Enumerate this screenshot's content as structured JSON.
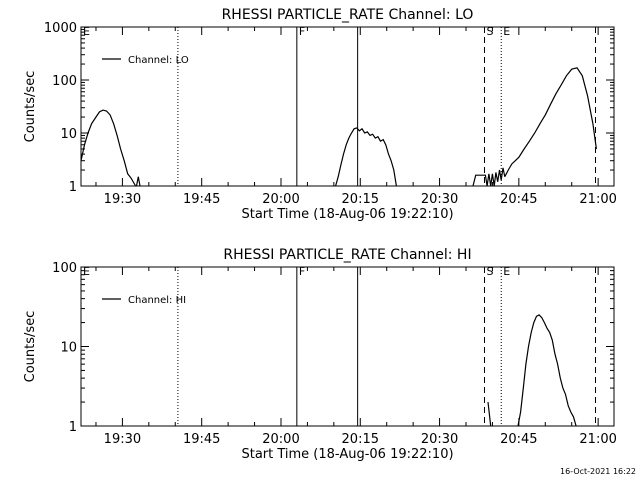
{
  "chart_data": [
    {
      "type": "line",
      "title": "RHESSI PARTICLE_RATE Channel: LO",
      "xlabel": "Start Time (18-Aug-06 19:22:10)",
      "ylabel": "Counts/sec",
      "y_scale": "log",
      "xlim": [
        "19:22:10",
        "21:03:00"
      ],
      "ylim": [
        1,
        1000
      ],
      "x_ticks": [
        "19:30",
        "19:45",
        "20:00",
        "20:15",
        "20:30",
        "20:45",
        "21:00"
      ],
      "y_ticks": [
        "1",
        "10",
        "100",
        "1000"
      ],
      "legend": {
        "entries": [
          "Channel: LO"
        ],
        "position": "top-left"
      },
      "grid": false,
      "markers": [
        {
          "label": "E",
          "time": "19:22:10",
          "style": "solid"
        },
        {
          "label": "",
          "time": "19:40:30",
          "style": "dotted"
        },
        {
          "label": "F",
          "time": "20:03:00",
          "style": "solid"
        },
        {
          "label": "",
          "time": "20:14:30",
          "style": "solid"
        },
        {
          "label": "S",
          "time": "20:38:30",
          "style": "dashed"
        },
        {
          "label": "E",
          "time": "20:41:40",
          "style": "dotted"
        },
        {
          "label": "",
          "time": "20:59:30",
          "style": "dashed"
        }
      ],
      "series": [
        {
          "name": "Channel: LO",
          "segments": [
            {
              "x": [
                "19:22:10",
                "19:22:50",
                "19:23:30",
                "19:24:10",
                "19:25:00",
                "19:25:40",
                "19:26:20",
                "19:27:00",
                "19:27:40",
                "19:28:20",
                "19:29:00",
                "19:29:40",
                "19:30:20",
                "19:31:00",
                "19:31:40",
                "19:32:30"
              ],
              "y": [
                3,
                6,
                10,
                15,
                20,
                25,
                27,
                26,
                22,
                15,
                9,
                5,
                3,
                1.7,
                1.4,
                1
              ]
            },
            {
              "x": [
                "19:32:40",
                "19:33:00",
                "19:33:20"
              ],
              "y": [
                1,
                1.5,
                1
              ]
            },
            {
              "x": [
                "20:10:20",
                "20:10:50",
                "20:11:20",
                "20:11:50",
                "20:12:20",
                "20:12:50",
                "20:13:20",
                "20:13:50",
                "20:14:20",
                "20:14:50",
                "20:15:20",
                "20:15:50",
                "20:16:20",
                "20:16:50",
                "20:17:20",
                "20:17:50",
                "20:18:20",
                "20:18:50",
                "20:19:20",
                "20:19:50",
                "20:20:20",
                "20:20:50",
                "20:21:20",
                "20:21:50"
              ],
              "y": [
                1,
                1.5,
                2.5,
                4,
                6,
                8,
                10,
                12,
                12.5,
                11,
                12,
                10,
                10.5,
                9,
                9.5,
                8,
                8.5,
                7,
                7.5,
                6,
                4,
                3,
                2,
                1
              ]
            },
            {
              "x": [
                "20:36:20",
                "20:36:50",
                "20:37:30",
                "20:38:10",
                "20:38:40",
                "20:39:00",
                "20:39:20",
                "20:39:40",
                "20:40:00",
                "20:40:20",
                "20:40:40",
                "20:41:00",
                "20:41:20",
                "20:41:40",
                "20:42:00",
                "20:42:20"
              ],
              "y": [
                1,
                1.6,
                1.6,
                1.6,
                1.6,
                1,
                1.7,
                1,
                1.7,
                1,
                1.8,
                1.2,
                2,
                1.3,
                2.2,
                1.5
              ]
            },
            {
              "x": [
                "20:42:20",
                "20:43:00",
                "20:43:40",
                "20:44:20",
                "20:45:00",
                "20:46:00",
                "20:47:00",
                "20:48:00",
                "20:49:00",
                "20:50:00",
                "20:51:00",
                "20:52:00",
                "20:53:00",
                "20:54:00",
                "20:55:00",
                "20:56:00",
                "20:57:00",
                "20:58:00",
                "20:59:00",
                "20:59:40"
              ],
              "y": [
                1.5,
                2,
                2.6,
                3,
                3.5,
                5,
                7,
                10,
                15,
                22,
                35,
                55,
                80,
                120,
                160,
                170,
                120,
                50,
                15,
                5
              ]
            }
          ]
        }
      ]
    },
    {
      "type": "line",
      "title": "RHESSI PARTICLE_RATE Channel: HI",
      "xlabel": "Start Time (18-Aug-06 19:22:10)",
      "ylabel": "Counts/sec",
      "y_scale": "log",
      "xlim": [
        "19:22:10",
        "21:03:00"
      ],
      "ylim": [
        1,
        100
      ],
      "x_ticks": [
        "19:30",
        "19:45",
        "20:00",
        "20:15",
        "20:30",
        "20:45",
        "21:00"
      ],
      "y_ticks": [
        "1",
        "10",
        "100"
      ],
      "legend": {
        "entries": [
          "Channel: HI"
        ],
        "position": "top-left"
      },
      "grid": false,
      "markers": [
        {
          "label": "E",
          "time": "19:22:10",
          "style": "solid"
        },
        {
          "label": "",
          "time": "19:40:30",
          "style": "dotted"
        },
        {
          "label": "F",
          "time": "20:03:00",
          "style": "solid"
        },
        {
          "label": "",
          "time": "20:14:30",
          "style": "solid"
        },
        {
          "label": "S",
          "time": "20:38:30",
          "style": "dashed"
        },
        {
          "label": "E",
          "time": "20:41:40",
          "style": "dotted"
        },
        {
          "label": "",
          "time": "20:59:30",
          "style": "dashed"
        }
      ],
      "series": [
        {
          "name": "Channel: HI",
          "segments": [
            {
              "x": [
                "20:39:10",
                "20:39:40"
              ],
              "y": [
                2,
                1
              ]
            },
            {
              "x": [
                "20:44:50",
                "20:45:20",
                "20:45:50",
                "20:46:20",
                "20:46:50",
                "20:47:20",
                "20:47:50",
                "20:48:20",
                "20:48:50",
                "20:49:20",
                "20:49:50",
                "20:50:20",
                "20:50:50",
                "20:51:20",
                "20:51:50",
                "20:52:20",
                "20:52:50",
                "20:53:20",
                "20:53:50",
                "20:54:20",
                "20:54:50",
                "20:55:20",
                "20:55:50"
              ],
              "y": [
                1,
                1.5,
                3,
                6,
                10,
                15,
                20,
                24,
                25,
                23,
                20,
                17,
                15,
                12,
                8,
                6,
                4,
                3,
                2.5,
                1.8,
                1.5,
                1.3,
                1
              ]
            }
          ]
        }
      ]
    }
  ],
  "footer": {
    "date": "16-Oct-2021 16:22"
  }
}
